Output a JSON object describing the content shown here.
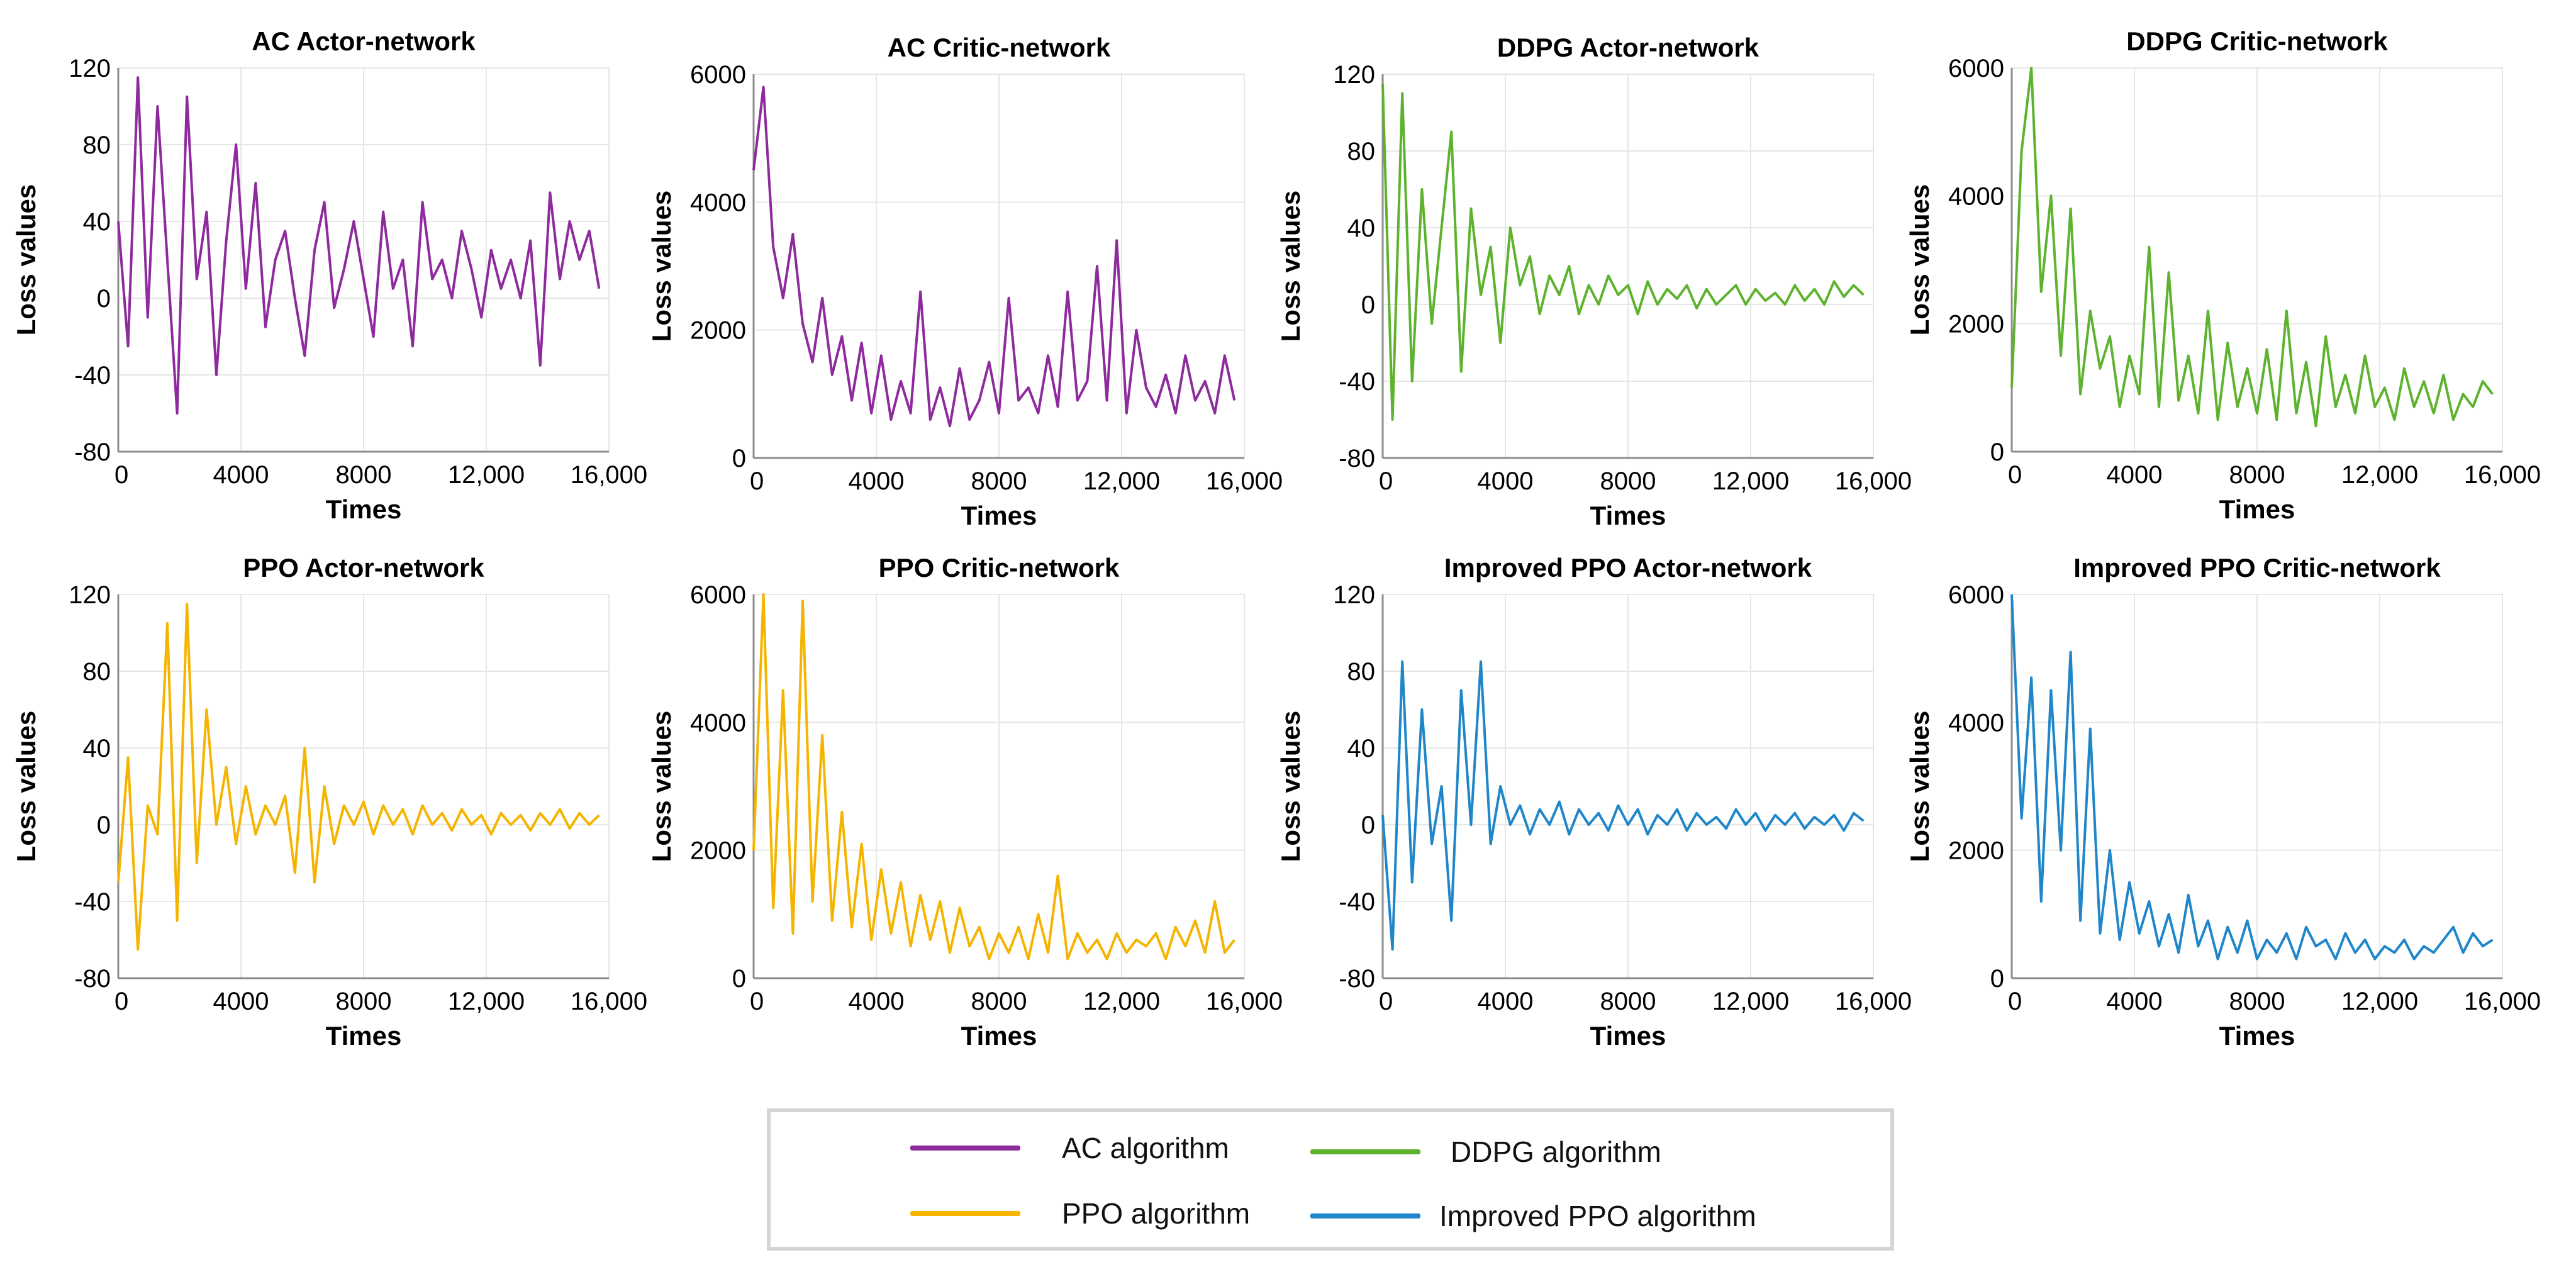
{
  "colors": {
    "ac": "#8E2A9E",
    "ddpg": "#5DB32E",
    "ppo": "#F5B400",
    "improved_ppo": "#1E86C9"
  },
  "legend": {
    "items": [
      {
        "label": "AC algorithm",
        "color_key": "ac"
      },
      {
        "label": "DDPG algorithm",
        "color_key": "ddpg"
      },
      {
        "label": "PPO algorithm",
        "color_key": "ppo"
      },
      {
        "label": "Improved PPO algorithm",
        "color_key": "improved_ppo"
      }
    ]
  },
  "chart_data": [
    {
      "type": "line",
      "title": "AC Actor-network",
      "series_name": "AC algorithm",
      "color_key": "ac",
      "xlabel": "Times",
      "ylabel": "Loss values",
      "xlim": [
        0,
        16000
      ],
      "ylim": [
        -80,
        120
      ],
      "xticks": [
        0,
        4000,
        8000,
        12000,
        16000
      ],
      "xtick_labels": [
        "0",
        "4000",
        "8000",
        "12,000",
        "16,000"
      ],
      "yticks": [
        -80,
        -40,
        0,
        40,
        80,
        120
      ],
      "ytick_labels": [
        "-80",
        "-40",
        "0",
        "40",
        "80",
        "120"
      ],
      "grid": true,
      "x": [
        0,
        320,
        640,
        960,
        1280,
        1600,
        1920,
        2240,
        2560,
        2880,
        3200,
        3520,
        3840,
        4160,
        4480,
        4800,
        5120,
        5440,
        5760,
        6080,
        6400,
        6720,
        7040,
        7360,
        7680,
        8000,
        8320,
        8640,
        8960,
        9280,
        9600,
        9920,
        10240,
        10560,
        10880,
        11200,
        11520,
        11840,
        12160,
        12480,
        12800,
        13120,
        13440,
        13760,
        14080,
        14400,
        14720,
        15040,
        15360,
        15680
      ],
      "y": [
        40,
        -25,
        115,
        -10,
        100,
        20,
        -60,
        105,
        10,
        45,
        -40,
        30,
        80,
        5,
        60,
        -15,
        20,
        35,
        0,
        -30,
        25,
        50,
        -5,
        15,
        40,
        10,
        -20,
        45,
        5,
        20,
        -25,
        50,
        10,
        20,
        0,
        35,
        15,
        -10,
        25,
        5,
        20,
        0,
        30,
        -35,
        55,
        10,
        40,
        20,
        35,
        5
      ]
    },
    {
      "type": "line",
      "title": "AC Critic-network",
      "series_name": "AC algorithm",
      "color_key": "ac",
      "xlabel": "Times",
      "ylabel": "Loss values",
      "xlim": [
        0,
        16000
      ],
      "ylim": [
        0,
        6000
      ],
      "xticks": [
        0,
        4000,
        8000,
        12000,
        16000
      ],
      "xtick_labels": [
        "0",
        "4000",
        "8000",
        "12,000",
        "16,000"
      ],
      "yticks": [
        0,
        2000,
        4000,
        6000
      ],
      "ytick_labels": [
        "0",
        "2000",
        "4000",
        "6000"
      ],
      "grid": true,
      "x": [
        0,
        320,
        640,
        960,
        1280,
        1600,
        1920,
        2240,
        2560,
        2880,
        3200,
        3520,
        3840,
        4160,
        4480,
        4800,
        5120,
        5440,
        5760,
        6080,
        6400,
        6720,
        7040,
        7360,
        7680,
        8000,
        8320,
        8640,
        8960,
        9280,
        9600,
        9920,
        10240,
        10560,
        10880,
        11200,
        11520,
        11840,
        12160,
        12480,
        12800,
        13120,
        13440,
        13760,
        14080,
        14400,
        14720,
        15040,
        15360,
        15680
      ],
      "y": [
        4500,
        5800,
        3300,
        2500,
        3500,
        2100,
        1500,
        2500,
        1300,
        1900,
        900,
        1800,
        700,
        1600,
        600,
        1200,
        700,
        2600,
        600,
        1100,
        500,
        1400,
        600,
        900,
        1500,
        700,
        2500,
        900,
        1100,
        700,
        1600,
        800,
        2600,
        900,
        1200,
        3000,
        900,
        3400,
        700,
        2000,
        1100,
        800,
        1300,
        700,
        1600,
        900,
        1200,
        700,
        1600,
        900
      ]
    },
    {
      "type": "line",
      "title": "DDPG Actor-network",
      "series_name": "DDPG algorithm",
      "color_key": "ddpg",
      "xlabel": "Times",
      "ylabel": "Loss values",
      "xlim": [
        0,
        16000
      ],
      "ylim": [
        -80,
        120
      ],
      "xticks": [
        0,
        4000,
        8000,
        12000,
        16000
      ],
      "xtick_labels": [
        "0",
        "4000",
        "8000",
        "12,000",
        "16,000"
      ],
      "yticks": [
        -80,
        -40,
        0,
        40,
        80,
        120
      ],
      "ytick_labels": [
        "-80",
        "-40",
        "0",
        "40",
        "80",
        "120"
      ],
      "grid": true,
      "x": [
        0,
        320,
        640,
        960,
        1280,
        1600,
        1920,
        2240,
        2560,
        2880,
        3200,
        3520,
        3840,
        4160,
        4480,
        4800,
        5120,
        5440,
        5760,
        6080,
        6400,
        6720,
        7040,
        7360,
        7680,
        8000,
        8320,
        8640,
        8960,
        9280,
        9600,
        9920,
        10240,
        10560,
        10880,
        11200,
        11520,
        11840,
        12160,
        12480,
        12800,
        13120,
        13440,
        13760,
        14080,
        14400,
        14720,
        15040,
        15360,
        15680
      ],
      "y": [
        115,
        -60,
        110,
        -40,
        60,
        -10,
        40,
        90,
        -35,
        50,
        5,
        30,
        -20,
        40,
        10,
        25,
        -5,
        15,
        5,
        20,
        -5,
        10,
        0,
        15,
        5,
        10,
        -5,
        12,
        0,
        8,
        3,
        10,
        -2,
        8,
        0,
        5,
        10,
        0,
        8,
        2,
        6,
        0,
        10,
        2,
        8,
        0,
        12,
        4,
        10,
        5
      ]
    },
    {
      "type": "line",
      "title": "DDPG Critic-network",
      "series_name": "DDPG algorithm",
      "color_key": "ddpg",
      "xlabel": "Times",
      "ylabel": "Loss values",
      "xlim": [
        0,
        16000
      ],
      "ylim": [
        0,
        6000
      ],
      "xticks": [
        0,
        4000,
        8000,
        12000,
        16000
      ],
      "xtick_labels": [
        "0",
        "4000",
        "8000",
        "12,000",
        "16,000"
      ],
      "yticks": [
        0,
        2000,
        4000,
        6000
      ],
      "ytick_labels": [
        "0",
        "2000",
        "4000",
        "6000"
      ],
      "grid": true,
      "x": [
        0,
        320,
        640,
        960,
        1280,
        1600,
        1920,
        2240,
        2560,
        2880,
        3200,
        3520,
        3840,
        4160,
        4480,
        4800,
        5120,
        5440,
        5760,
        6080,
        6400,
        6720,
        7040,
        7360,
        7680,
        8000,
        8320,
        8640,
        8960,
        9280,
        9600,
        9920,
        10240,
        10560,
        10880,
        11200,
        11520,
        11840,
        12160,
        12480,
        12800,
        13120,
        13440,
        13760,
        14080,
        14400,
        14720,
        15040,
        15360,
        15680
      ],
      "y": [
        1000,
        4700,
        6100,
        2500,
        4000,
        1500,
        3800,
        900,
        2200,
        1300,
        1800,
        700,
        1500,
        900,
        3200,
        700,
        2800,
        800,
        1500,
        600,
        2200,
        500,
        1700,
        700,
        1300,
        600,
        1600,
        500,
        2200,
        600,
        1400,
        400,
        1800,
        700,
        1200,
        600,
        1500,
        700,
        1000,
        500,
        1300,
        700,
        1100,
        600,
        1200,
        500,
        900,
        700,
        1100,
        900
      ]
    },
    {
      "type": "line",
      "title": "PPO Actor-network",
      "series_name": "PPO algorithm",
      "color_key": "ppo",
      "xlabel": "Times",
      "ylabel": "Loss values",
      "xlim": [
        0,
        16000
      ],
      "ylim": [
        -80,
        120
      ],
      "xticks": [
        0,
        4000,
        8000,
        12000,
        16000
      ],
      "xtick_labels": [
        "0",
        "4000",
        "8000",
        "12,000",
        "16,000"
      ],
      "yticks": [
        -80,
        -40,
        0,
        40,
        80,
        120
      ],
      "ytick_labels": [
        "-80",
        "-40",
        "0",
        "40",
        "80",
        "120"
      ],
      "grid": true,
      "x": [
        0,
        320,
        640,
        960,
        1280,
        1600,
        1920,
        2240,
        2560,
        2880,
        3200,
        3520,
        3840,
        4160,
        4480,
        4800,
        5120,
        5440,
        5760,
        6080,
        6400,
        6720,
        7040,
        7360,
        7680,
        8000,
        8320,
        8640,
        8960,
        9280,
        9600,
        9920,
        10240,
        10560,
        10880,
        11200,
        11520,
        11840,
        12160,
        12480,
        12800,
        13120,
        13440,
        13760,
        14080,
        14400,
        14720,
        15040,
        15360,
        15680
      ],
      "y": [
        -30,
        35,
        -65,
        10,
        -5,
        105,
        -50,
        115,
        -20,
        60,
        0,
        30,
        -10,
        20,
        -5,
        10,
        0,
        15,
        -25,
        40,
        -30,
        20,
        -10,
        10,
        0,
        12,
        -5,
        10,
        0,
        8,
        -5,
        10,
        0,
        6,
        -3,
        8,
        0,
        5,
        -5,
        6,
        0,
        5,
        -3,
        6,
        0,
        8,
        -2,
        6,
        0,
        5
      ]
    },
    {
      "type": "line",
      "title": "PPO Critic-network",
      "series_name": "PPO algorithm",
      "color_key": "ppo",
      "xlabel": "Times",
      "ylabel": "Loss values",
      "xlim": [
        0,
        16000
      ],
      "ylim": [
        0,
        6000
      ],
      "xticks": [
        0,
        4000,
        8000,
        12000,
        16000
      ],
      "xtick_labels": [
        "0",
        "4000",
        "8000",
        "12,000",
        "16,000"
      ],
      "yticks": [
        0,
        2000,
        4000,
        6000
      ],
      "ytick_labels": [
        "0",
        "2000",
        "4000",
        "6000"
      ],
      "grid": true,
      "x": [
        0,
        320,
        640,
        960,
        1280,
        1600,
        1920,
        2240,
        2560,
        2880,
        3200,
        3520,
        3840,
        4160,
        4480,
        4800,
        5120,
        5440,
        5760,
        6080,
        6400,
        6720,
        7040,
        7360,
        7680,
        8000,
        8320,
        8640,
        8960,
        9280,
        9600,
        9920,
        10240,
        10560,
        10880,
        11200,
        11520,
        11840,
        12160,
        12480,
        12800,
        13120,
        13440,
        13760,
        14080,
        14400,
        14720,
        15040,
        15360,
        15680
      ],
      "y": [
        2000,
        6000,
        1100,
        4500,
        700,
        5900,
        1200,
        3800,
        900,
        2600,
        800,
        2100,
        600,
        1700,
        700,
        1500,
        500,
        1300,
        600,
        1200,
        400,
        1100,
        500,
        800,
        300,
        700,
        400,
        800,
        300,
        1000,
        400,
        1600,
        300,
        700,
        400,
        600,
        300,
        700,
        400,
        600,
        500,
        700,
        300,
        800,
        500,
        900,
        400,
        1200,
        400,
        600
      ]
    },
    {
      "type": "line",
      "title": "Improved PPO Actor-network",
      "series_name": "Improved PPO algorithm",
      "color_key": "improved_ppo",
      "xlabel": "Times",
      "ylabel": "Loss values",
      "xlim": [
        0,
        16000
      ],
      "ylim": [
        -80,
        120
      ],
      "xticks": [
        0,
        4000,
        8000,
        12000,
        16000
      ],
      "xtick_labels": [
        "0",
        "4000",
        "8000",
        "12,000",
        "16,000"
      ],
      "yticks": [
        -80,
        -40,
        0,
        40,
        80,
        120
      ],
      "ytick_labels": [
        "-80",
        "-40",
        "0",
        "40",
        "80",
        "120"
      ],
      "grid": true,
      "x": [
        0,
        320,
        640,
        960,
        1280,
        1600,
        1920,
        2240,
        2560,
        2880,
        3200,
        3520,
        3840,
        4160,
        4480,
        4800,
        5120,
        5440,
        5760,
        6080,
        6400,
        6720,
        7040,
        7360,
        7680,
        8000,
        8320,
        8640,
        8960,
        9280,
        9600,
        9920,
        10240,
        10560,
        10880,
        11200,
        11520,
        11840,
        12160,
        12480,
        12800,
        13120,
        13440,
        13760,
        14080,
        14400,
        14720,
        15040,
        15360,
        15680
      ],
      "y": [
        5,
        -65,
        85,
        -30,
        60,
        -10,
        20,
        -50,
        70,
        0,
        85,
        -10,
        20,
        0,
        10,
        -5,
        8,
        0,
        12,
        -5,
        8,
        0,
        6,
        -3,
        10,
        0,
        8,
        -5,
        5,
        0,
        8,
        -3,
        6,
        0,
        4,
        -2,
        8,
        0,
        6,
        -3,
        5,
        0,
        6,
        -2,
        4,
        0,
        5,
        -3,
        6,
        2
      ]
    },
    {
      "type": "line",
      "title": "Improved PPO Critic-network",
      "series_name": "Improved PPO algorithm",
      "color_key": "improved_ppo",
      "xlabel": "Times",
      "ylabel": "Loss values",
      "xlim": [
        0,
        16000
      ],
      "ylim": [
        0,
        6000
      ],
      "xticks": [
        0,
        4000,
        8000,
        12000,
        16000
      ],
      "xtick_labels": [
        "0",
        "4000",
        "8000",
        "12,000",
        "16,000"
      ],
      "yticks": [
        0,
        2000,
        4000,
        6000
      ],
      "ytick_labels": [
        "0",
        "2000",
        "4000",
        "6000"
      ],
      "grid": true,
      "x": [
        0,
        320,
        640,
        960,
        1280,
        1600,
        1920,
        2240,
        2560,
        2880,
        3200,
        3520,
        3840,
        4160,
        4480,
        4800,
        5120,
        5440,
        5760,
        6080,
        6400,
        6720,
        7040,
        7360,
        7680,
        8000,
        8320,
        8640,
        8960,
        9280,
        9600,
        9920,
        10240,
        10560,
        10880,
        11200,
        11520,
        11840,
        12160,
        12480,
        12800,
        13120,
        13440,
        13760,
        14080,
        14400,
        14720,
        15040,
        15360,
        15680
      ],
      "y": [
        6000,
        2500,
        4700,
        1200,
        4500,
        2000,
        5100,
        900,
        3900,
        700,
        2000,
        600,
        1500,
        700,
        1200,
        500,
        1000,
        400,
        1300,
        500,
        900,
        300,
        800,
        400,
        900,
        300,
        600,
        400,
        700,
        300,
        800,
        500,
        600,
        300,
        700,
        400,
        600,
        300,
        500,
        400,
        600,
        300,
        500,
        400,
        600,
        800,
        400,
        700,
        500,
        600
      ]
    }
  ]
}
